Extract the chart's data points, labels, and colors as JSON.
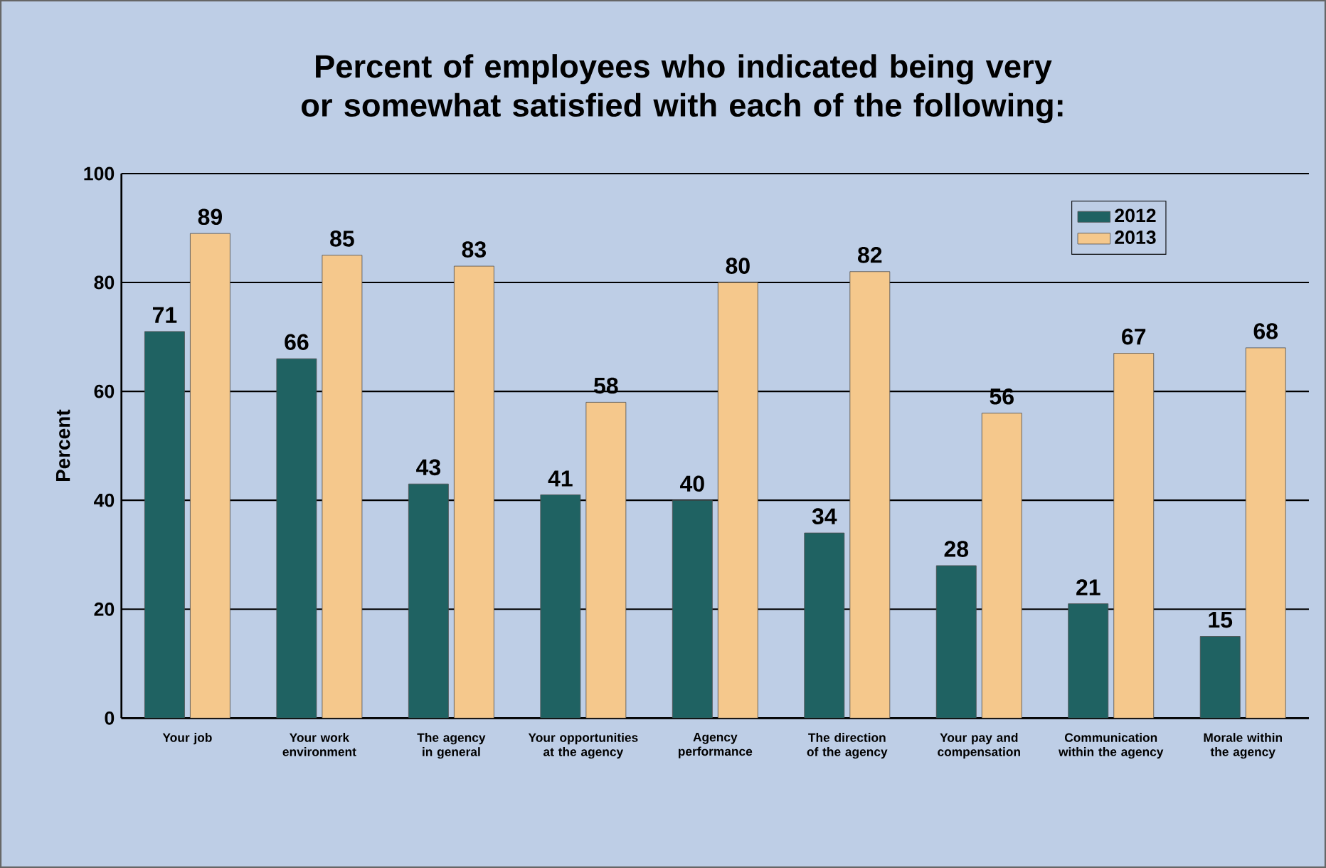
{
  "chart_data": {
    "type": "bar",
    "title": "Percent of employees who indicated being very or somewhat satisfied with each of the following:",
    "ylabel": "Percent",
    "categories": [
      "Your job",
      "Your work environment",
      "The agency in general",
      "Your opportunities at the agency",
      "Agency performance",
      "The direction of the agency",
      "Your pay and compensation",
      "Communication within the agency",
      "Morale within the agency"
    ],
    "series": [
      {
        "name": "2012",
        "color": "#1f6262",
        "values": [
          71,
          66,
          43,
          41,
          40,
          34,
          28,
          21,
          15
        ]
      },
      {
        "name": "2013",
        "color": "#f5c88c",
        "values": [
          89,
          85,
          83,
          58,
          80,
          82,
          56,
          67,
          68
        ]
      }
    ],
    "ylim": [
      0,
      100
    ],
    "yticks": [
      0,
      20,
      40,
      60,
      80,
      100
    ],
    "grid": "y",
    "legend": "top right",
    "data_labels": true
  }
}
